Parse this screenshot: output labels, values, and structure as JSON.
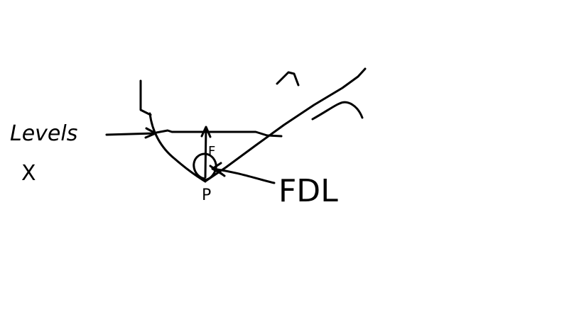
{
  "sketch": {
    "left_label": "Levels",
    "left_symbol": "X",
    "arrow_label": "F",
    "point_label": "P",
    "right_label": "FDL",
    "ink_color": "#000000",
    "background_color": "#ffffff"
  }
}
